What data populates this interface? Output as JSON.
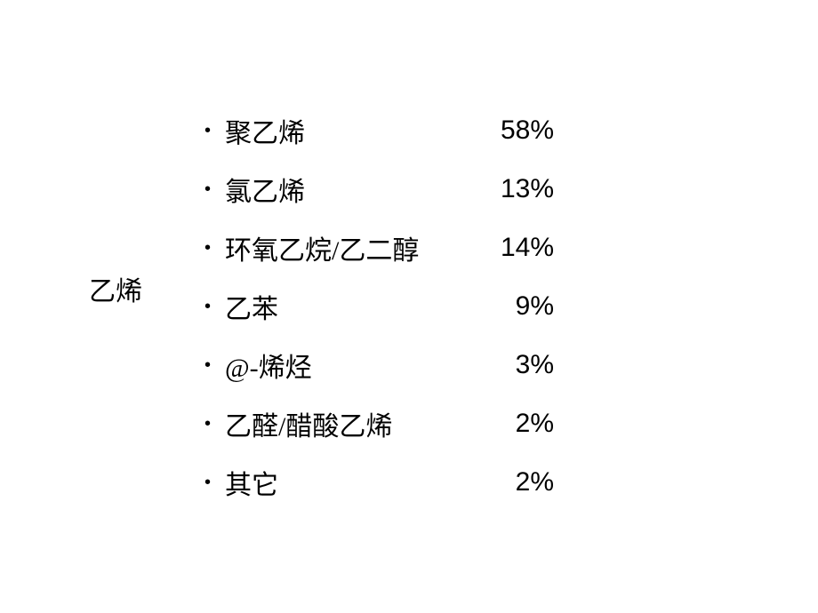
{
  "label": "乙烯",
  "items": [
    {
      "name": "聚乙烯",
      "value": "58%"
    },
    {
      "name": "氯乙烯",
      "value": "13%"
    },
    {
      "name": "环氧乙烷/乙二醇",
      "value": "14%"
    },
    {
      "name": "乙苯",
      "value": "9%"
    },
    {
      "name": "@-烯烃",
      "value": "3%"
    },
    {
      "name": "乙醛/醋酸乙烯",
      "value": "2%"
    },
    {
      "name": "其它",
      "value": "2%"
    }
  ],
  "style": {
    "background_color": "#ffffff",
    "text_color": "#000000",
    "font_size": 30,
    "bullet_char": "•",
    "row_gap": 22
  }
}
